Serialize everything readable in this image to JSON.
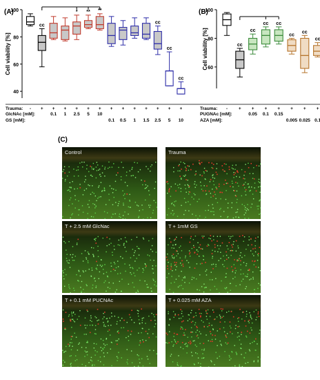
{
  "chart_data": [
    {
      "panel": "(A)",
      "type": "box",
      "ylabel": "Cell viability [%]",
      "ylim": [
        35,
        100
      ],
      "yticks": [
        40,
        60,
        80,
        100
      ],
      "row_labels": [
        "Trauma:",
        "GlcNAc [mM]:",
        "GS [mM]:"
      ],
      "boxes": [
        {
          "color": "#000000",
          "fill": "#ffffff",
          "trauma": "-",
          "glcnac": "",
          "gs": "",
          "min": 88,
          "q1": 89,
          "median": 91,
          "q3": 95,
          "max": 97,
          "sig": ""
        },
        {
          "color": "#000000",
          "fill": "#c8c8c8",
          "trauma": "+",
          "glcnac": "",
          "gs": "",
          "min": 58,
          "q1": 70,
          "median": 76,
          "q3": 81,
          "max": 86,
          "sig": "cc"
        },
        {
          "color": "#c0392b",
          "fill": "#c8c8c8",
          "trauma": "+",
          "glcnac": "0.1",
          "gs": "",
          "min": 78,
          "q1": 79,
          "median": 83,
          "q3": 90,
          "max": 95,
          "sig": ""
        },
        {
          "color": "#c0392b",
          "fill": "#c8c8c8",
          "trauma": "+",
          "glcnac": "1",
          "gs": "",
          "min": 77,
          "q1": 78,
          "median": 85,
          "q3": 88,
          "max": 94,
          "sig": ""
        },
        {
          "color": "#c0392b",
          "fill": "#c8c8c8",
          "trauma": "+",
          "glcnac": "2.5",
          "gs": "",
          "min": 78,
          "q1": 82,
          "median": 88,
          "q3": 91,
          "max": 96,
          "sig": "*"
        },
        {
          "color": "#c0392b",
          "fill": "#c8c8c8",
          "trauma": "+",
          "glcnac": "5",
          "gs": "",
          "min": 86,
          "q1": 87,
          "median": 89,
          "q3": 92,
          "max": 96,
          "sig": "**"
        },
        {
          "color": "#c0392b",
          "fill": "#c8c8c8",
          "trauma": "+",
          "glcnac": "10",
          "gs": "",
          "min": 85,
          "q1": 86,
          "median": 89,
          "q3": 95,
          "max": 97,
          "sig": "**"
        },
        {
          "color": "#2c2ca8",
          "fill": "#c8c8c8",
          "trauma": "+",
          "glcnac": "",
          "gs": "0.1",
          "min": 73,
          "q1": 75,
          "median": 81,
          "q3": 90,
          "max": 95,
          "sig": ""
        },
        {
          "color": "#2c2ca8",
          "fill": "#c8c8c8",
          "trauma": "+",
          "glcnac": "",
          "gs": "0.5",
          "min": 74,
          "q1": 78,
          "median": 85,
          "q3": 87,
          "max": 92,
          "sig": ""
        },
        {
          "color": "#2c2ca8",
          "fill": "#c8c8c8",
          "trauma": "+",
          "glcnac": "",
          "gs": "1",
          "min": 79,
          "q1": 81,
          "median": 83,
          "q3": 88,
          "max": 94,
          "sig": ""
        },
        {
          "color": "#2c2ca8",
          "fill": "#c8c8c8",
          "trauma": "+",
          "glcnac": "",
          "gs": "1.5",
          "min": 78,
          "q1": 79,
          "median": 82,
          "q3": 90,
          "max": 94,
          "sig": ""
        },
        {
          "color": "#2c2ca8",
          "fill": "#c8c8c8",
          "trauma": "+",
          "glcnac": "",
          "gs": "2.5",
          "min": 67,
          "q1": 71,
          "median": 75,
          "q3": 84,
          "max": 88,
          "sig": "cc"
        },
        {
          "color": "#2c2ca8",
          "fill": "none",
          "trauma": "+",
          "glcnac": "",
          "gs": "5",
          "min": 44,
          "q1": 44,
          "median": 55,
          "q3": 55,
          "max": 69,
          "sig": "cc"
        },
        {
          "color": "#2c2ca8",
          "fill": "none",
          "trauma": "+",
          "glcnac": "",
          "gs": "10",
          "min": 38,
          "q1": 38,
          "median": 42,
          "q3": 42,
          "max": 47,
          "sig": "cc"
        }
      ],
      "brackets": [
        {
          "from": 1,
          "to": 4,
          "label": "*"
        },
        {
          "from": 1,
          "to": 5,
          "label": "**"
        },
        {
          "from": 1,
          "to": 6,
          "label": "**"
        }
      ]
    },
    {
      "panel": "(B)",
      "type": "box",
      "ylabel": "Cell viability [%]",
      "ylim": [
        45,
        100
      ],
      "yticks": [
        60,
        80,
        100
      ],
      "row_labels": [
        "Trauma:",
        "PUGNAc [mM]:",
        "AZA [mM]:"
      ],
      "boxes": [
        {
          "color": "#000000",
          "fill": "#ffffff",
          "trauma": "-",
          "pugnac": "",
          "aza": "",
          "min": 82,
          "q1": 89,
          "median": 93,
          "q3": 97,
          "max": 98,
          "sig": ""
        },
        {
          "color": "#000000",
          "fill": "#c8c8c8",
          "trauma": "+",
          "pugnac": "",
          "aza": "",
          "min": 53,
          "q1": 59,
          "median": 65,
          "q3": 71,
          "max": 73,
          "sig": "cc"
        },
        {
          "color": "#3a8a3a",
          "fill": "#c8e6c0",
          "trauma": "+",
          "pugnac": "0.05",
          "aza": "",
          "min": 69,
          "q1": 72,
          "median": 76,
          "q3": 80,
          "max": 83,
          "sig": "cc"
        },
        {
          "color": "#3a8a3a",
          "fill": "#c8e6c0",
          "trauma": "+",
          "pugnac": "0.1",
          "aza": "",
          "min": 74,
          "q1": 76,
          "median": 82,
          "q3": 86,
          "max": 88,
          "sig": "cc"
        },
        {
          "color": "#3a8a3a",
          "fill": "#c8e6c0",
          "trauma": "+",
          "pugnac": "0.15",
          "aza": "",
          "min": 76,
          "q1": 78,
          "median": 82,
          "q3": 86,
          "max": 88,
          "sig": "cc"
        },
        {
          "color": "#b5732a",
          "fill": "#f0dcc4",
          "trauma": "+",
          "pugnac": "",
          "aza": "0.005",
          "min": 69,
          "q1": 71,
          "median": 75,
          "q3": 79,
          "max": 80,
          "sig": "cc"
        },
        {
          "color": "#b5732a",
          "fill": "#f0dcc4",
          "trauma": "+",
          "pugnac": "",
          "aza": "0.025",
          "min": 56,
          "q1": 59,
          "median": 68,
          "q3": 80,
          "max": 82,
          "sig": "cc"
        },
        {
          "color": "#b5732a",
          "fill": "#f0dcc4",
          "trauma": "+",
          "pugnac": "",
          "aza": "0.1",
          "min": 67,
          "q1": 68,
          "median": 71,
          "q3": 75,
          "max": 77,
          "sig": "cc"
        }
      ],
      "brackets": [
        {
          "from": 1,
          "to": 3,
          "label": "**"
        },
        {
          "from": 1,
          "to": 4,
          "label": "**"
        }
      ]
    }
  ],
  "figure_c": {
    "panel": "(C)",
    "images": [
      {
        "label": "Control",
        "red": "low"
      },
      {
        "label": "Trauma",
        "red": "high"
      },
      {
        "label": "T + 2.5 mM GlcNac",
        "red": "low"
      },
      {
        "label": "T + 1mM GS",
        "red": "high"
      },
      {
        "label": "T + 0.1 mM PUCNAc",
        "red": "medium"
      },
      {
        "label": "T + 0.025 mM AZA",
        "red": "high"
      }
    ]
  }
}
